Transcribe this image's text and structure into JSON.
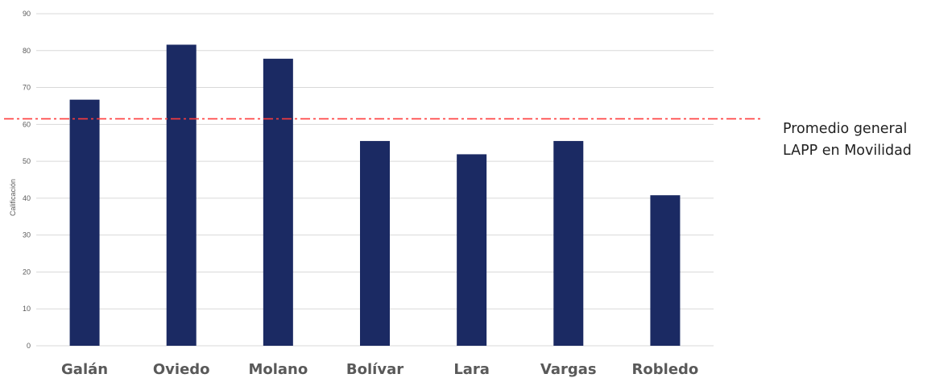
{
  "chart_data": {
    "type": "bar",
    "categories": [
      "Galán",
      "Oviedo",
      "Molano",
      "Bolívar",
      "Lara",
      "Vargas",
      "Robledo"
    ],
    "values": [
      66.7,
      81.6,
      77.8,
      55.5,
      51.9,
      55.5,
      40.8
    ],
    "ylabel": "Calificación",
    "ylim": [
      0,
      90
    ],
    "yticks": [
      0,
      10,
      20,
      30,
      40,
      50,
      60,
      70,
      80,
      90
    ],
    "grid": true,
    "bar_color": "#1b2a63",
    "grid_color": "#d9d9d9",
    "reference_line": {
      "value": 61.5,
      "color": "#ff3b3b",
      "label_lines": [
        "Promedio general",
        "LAPP en Movilidad"
      ]
    }
  }
}
